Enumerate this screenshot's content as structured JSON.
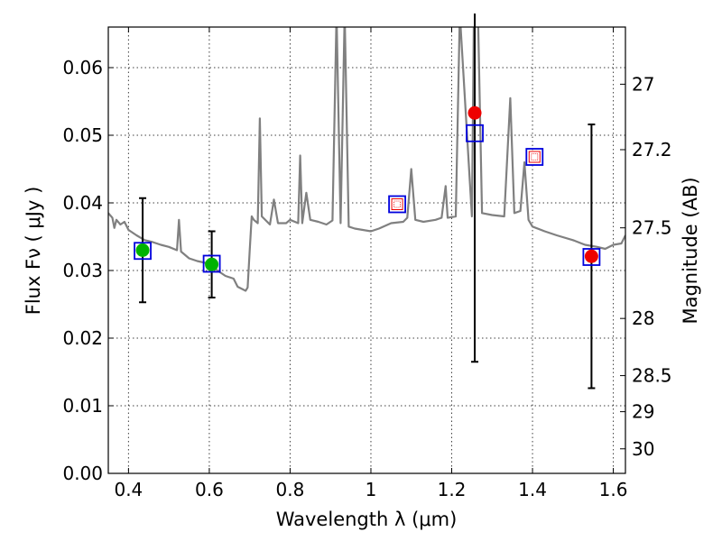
{
  "chart_data": {
    "type": "scatter",
    "title": "",
    "xlabel": "Wavelength  λ (μm)",
    "ylabel": "Flux  Fν  ( μJy )",
    "ylabel_right": "Magnitude (AB)",
    "xlim": [
      0.35,
      1.63
    ],
    "ylim": [
      0.0,
      0.066
    ],
    "grid": true,
    "x_ticks": [
      {
        "v": 0.4,
        "label": "0.4"
      },
      {
        "v": 0.6,
        "label": "0.6"
      },
      {
        "v": 0.8,
        "label": "0.8"
      },
      {
        "v": 1.0,
        "label": "1"
      },
      {
        "v": 1.2,
        "label": "1.2"
      },
      {
        "v": 1.4,
        "label": "1.4"
      },
      {
        "v": 1.6,
        "label": "1.6"
      }
    ],
    "y_ticks": [
      {
        "v": 0.0,
        "label": "0.00"
      },
      {
        "v": 0.01,
        "label": "0.01"
      },
      {
        "v": 0.02,
        "label": "0.02"
      },
      {
        "v": 0.03,
        "label": "0.03"
      },
      {
        "v": 0.04,
        "label": "0.04"
      },
      {
        "v": 0.05,
        "label": "0.05"
      },
      {
        "v": 0.06,
        "label": "0.06"
      }
    ],
    "y_right_ticks": [
      {
        "v": 27.0,
        "label": "27"
      },
      {
        "v": 27.2,
        "label": "27.2"
      },
      {
        "v": 27.5,
        "label": "27.5"
      },
      {
        "v": 28.0,
        "label": "28"
      },
      {
        "v": 28.5,
        "label": "28.5"
      },
      {
        "v": 29.0,
        "label": "29"
      },
      {
        "v": 30.0,
        "label": "30"
      }
    ],
    "colors": {
      "model": "#808080",
      "detected": "#00b300",
      "upper": "#ee0000",
      "model_box": "#0000dd",
      "errorbar": "#000000"
    },
    "model_spectrum": [
      [
        0.35,
        0.0385
      ],
      [
        0.36,
        0.0378
      ],
      [
        0.365,
        0.0363
      ],
      [
        0.37,
        0.0375
      ],
      [
        0.38,
        0.0368
      ],
      [
        0.39,
        0.0372
      ],
      [
        0.4,
        0.036
      ],
      [
        0.42,
        0.0352
      ],
      [
        0.44,
        0.0345
      ],
      [
        0.46,
        0.0342
      ],
      [
        0.48,
        0.0338
      ],
      [
        0.5,
        0.0335
      ],
      [
        0.52,
        0.033
      ],
      [
        0.525,
        0.0375
      ],
      [
        0.53,
        0.0328
      ],
      [
        0.55,
        0.0318
      ],
      [
        0.57,
        0.0314
      ],
      [
        0.6,
        0.031
      ],
      [
        0.62,
        0.03
      ],
      [
        0.64,
        0.0292
      ],
      [
        0.66,
        0.0288
      ],
      [
        0.67,
        0.0276
      ],
      [
        0.69,
        0.027
      ],
      [
        0.695,
        0.0275
      ],
      [
        0.7,
        0.033
      ],
      [
        0.705,
        0.038
      ],
      [
        0.71,
        0.0375
      ],
      [
        0.72,
        0.037
      ],
      [
        0.725,
        0.0525
      ],
      [
        0.73,
        0.038
      ],
      [
        0.75,
        0.0368
      ],
      [
        0.76,
        0.0405
      ],
      [
        0.77,
        0.037
      ],
      [
        0.79,
        0.037
      ],
      [
        0.8,
        0.0375
      ],
      [
        0.82,
        0.037
      ],
      [
        0.825,
        0.047
      ],
      [
        0.83,
        0.037
      ],
      [
        0.84,
        0.0415
      ],
      [
        0.85,
        0.0375
      ],
      [
        0.87,
        0.0372
      ],
      [
        0.89,
        0.0368
      ],
      [
        0.905,
        0.0374
      ],
      [
        0.915,
        0.068
      ],
      [
        0.925,
        0.037
      ],
      [
        0.935,
        0.068
      ],
      [
        0.945,
        0.0365
      ],
      [
        0.96,
        0.0362
      ],
      [
        0.98,
        0.036
      ],
      [
        1.0,
        0.0358
      ],
      [
        1.02,
        0.0362
      ],
      [
        1.05,
        0.037
      ],
      [
        1.08,
        0.0372
      ],
      [
        1.09,
        0.0378
      ],
      [
        1.1,
        0.045
      ],
      [
        1.11,
        0.0375
      ],
      [
        1.13,
        0.0372
      ],
      [
        1.16,
        0.0375
      ],
      [
        1.175,
        0.0378
      ],
      [
        1.185,
        0.0425
      ],
      [
        1.19,
        0.0378
      ],
      [
        1.21,
        0.038
      ],
      [
        1.22,
        0.068
      ],
      [
        1.25,
        0.038
      ],
      [
        1.255,
        0.068
      ],
      [
        1.265,
        0.068
      ],
      [
        1.275,
        0.0385
      ],
      [
        1.3,
        0.0382
      ],
      [
        1.33,
        0.038
      ],
      [
        1.345,
        0.0555
      ],
      [
        1.355,
        0.0385
      ],
      [
        1.37,
        0.0388
      ],
      [
        1.38,
        0.046
      ],
      [
        1.39,
        0.0375
      ],
      [
        1.4,
        0.0365
      ],
      [
        1.43,
        0.0358
      ],
      [
        1.46,
        0.0352
      ],
      [
        1.5,
        0.0345
      ],
      [
        1.53,
        0.0338
      ],
      [
        1.56,
        0.0335
      ],
      [
        1.58,
        0.0332
      ],
      [
        1.6,
        0.0338
      ],
      [
        1.62,
        0.034
      ],
      [
        1.63,
        0.0352
      ]
    ],
    "model_boxes": [
      {
        "x": 0.435,
        "y": 0.0329
      },
      {
        "x": 0.606,
        "y": 0.031
      },
      {
        "x": 1.065,
        "y": 0.0398
      },
      {
        "x": 1.257,
        "y": 0.0503
      },
      {
        "x": 1.405,
        "y": 0.0468
      },
      {
        "x": 1.546,
        "y": 0.032
      }
    ],
    "detections": [
      {
        "x": 0.435,
        "y": 0.033,
        "yerr_low": 0.0253,
        "yerr_high": 0.0407
      },
      {
        "x": 0.606,
        "y": 0.0309,
        "yerr_low": 0.026,
        "yerr_high": 0.0358
      }
    ],
    "upper_limits": [
      {
        "x": 1.257,
        "y": 0.0533,
        "yerr_low": 0.0165,
        "yerr_high": 0.068
      },
      {
        "x": 1.546,
        "y": 0.0321,
        "yerr_low": 0.0126,
        "yerr_high": 0.0516
      }
    ],
    "open_markers": [
      {
        "x": 1.065,
        "y": 0.0398
      },
      {
        "x": 1.405,
        "y": 0.0468
      }
    ]
  }
}
